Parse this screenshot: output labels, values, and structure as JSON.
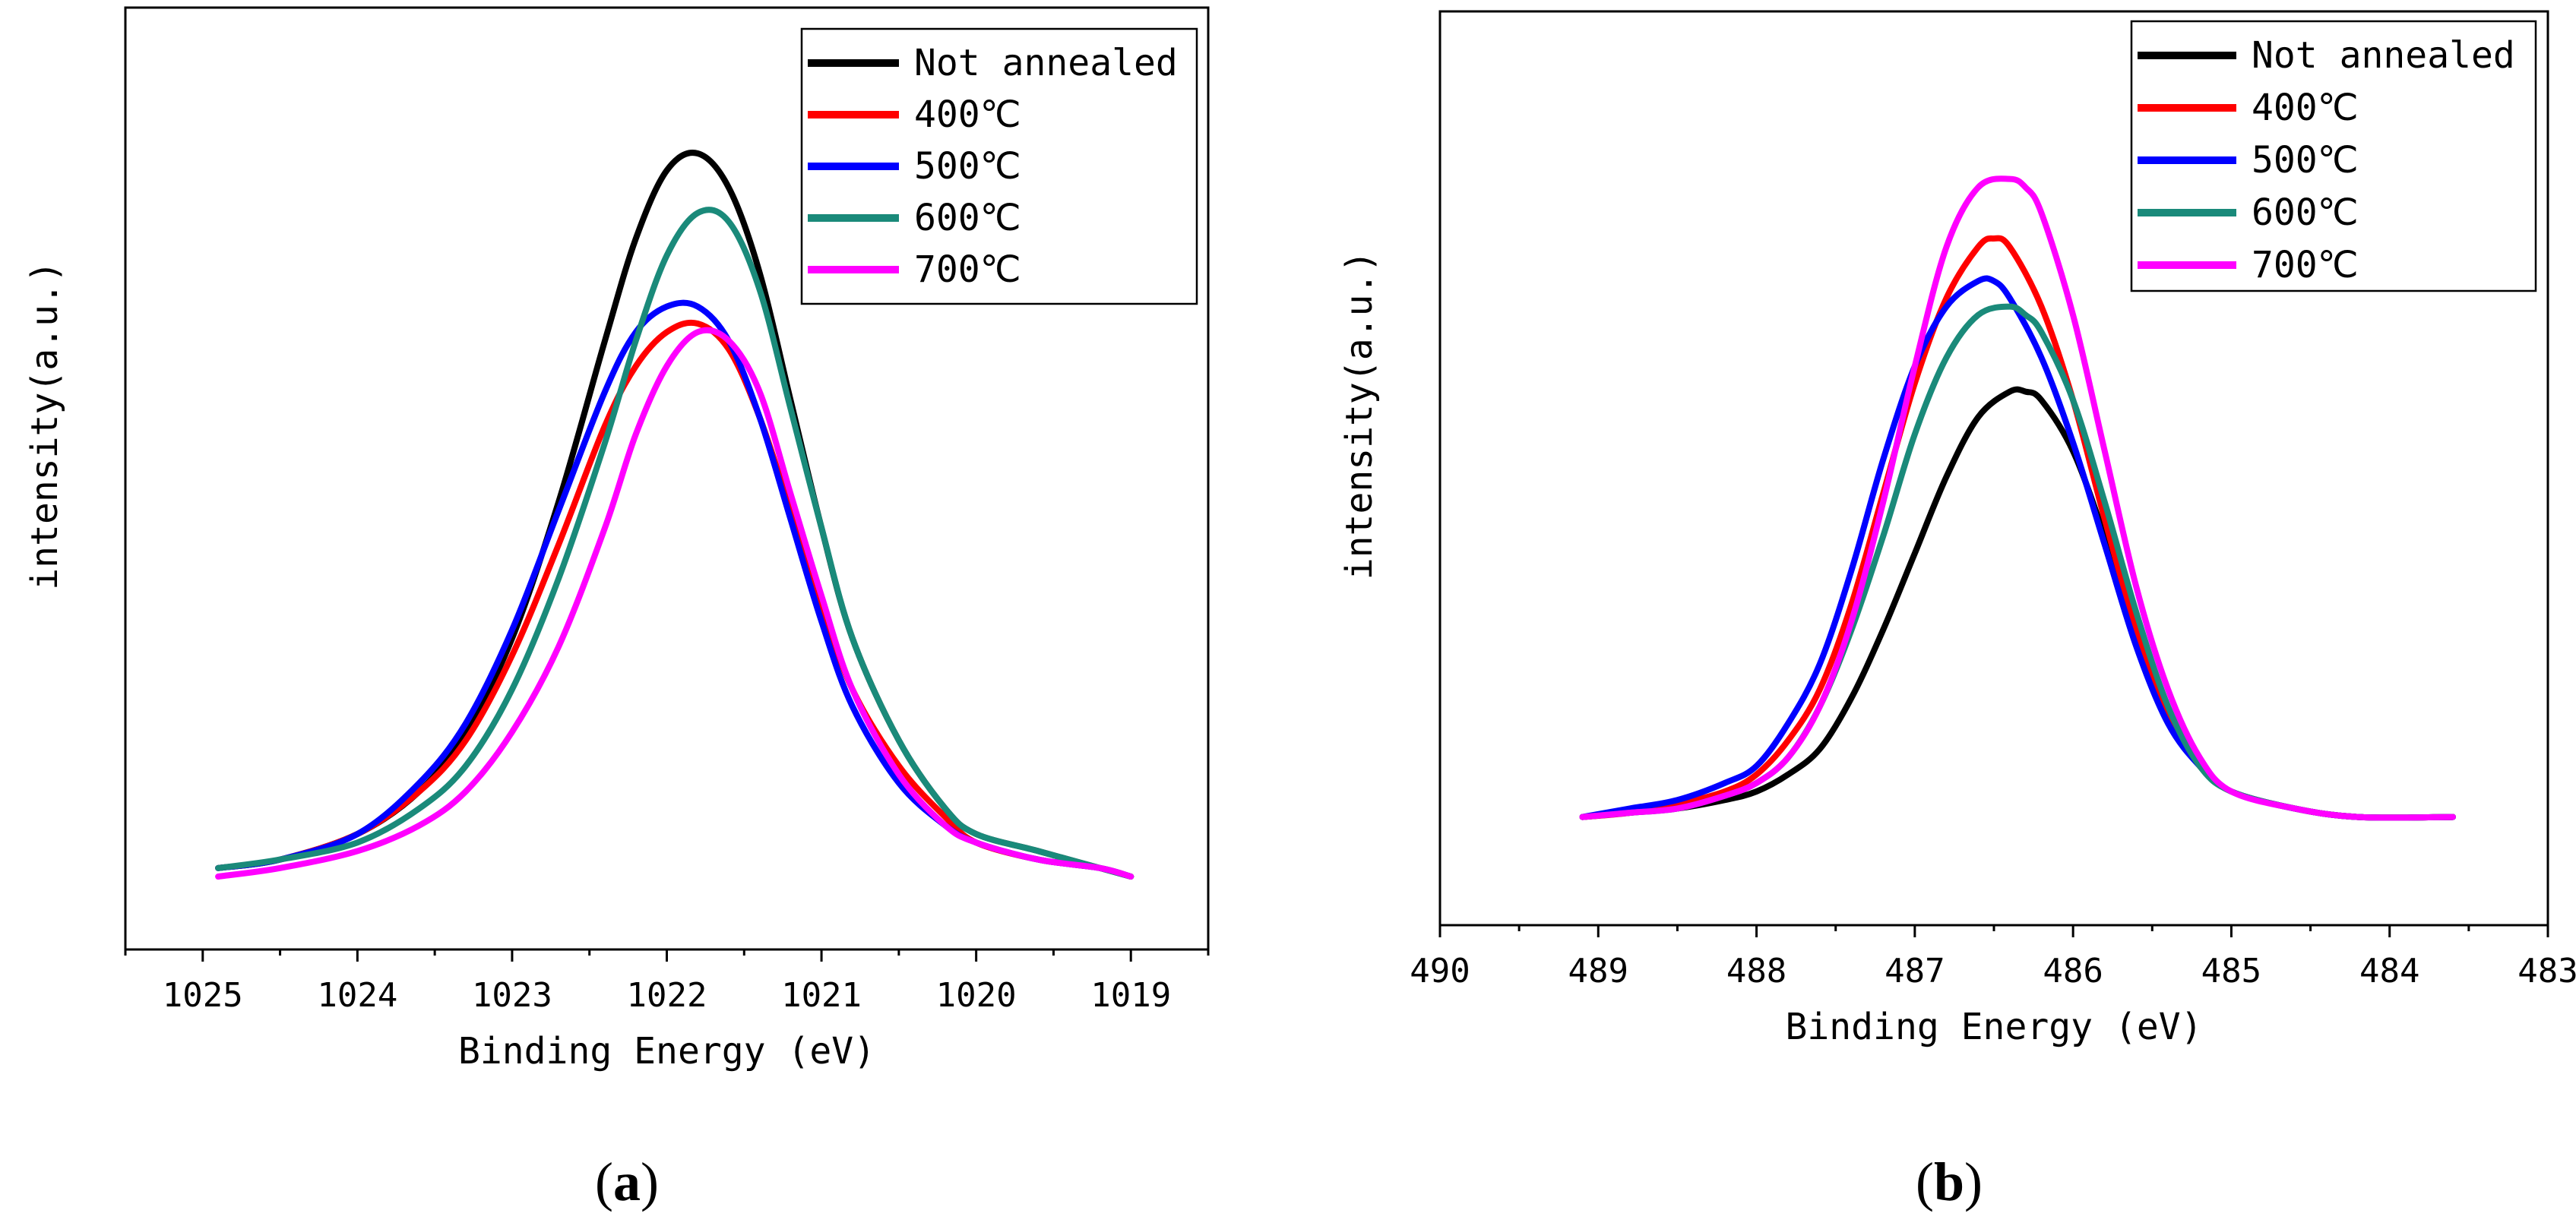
{
  "chart_data": [
    {
      "type": "line",
      "panel_label": "a",
      "title": "",
      "xlabel": "Binding Energy (eV)",
      "ylabel": "intensity(a.u.)",
      "xlim": [
        1025.5,
        1018.5
      ],
      "ylim": [
        0,
        1
      ],
      "x_reversed": true,
      "x_ticks": [
        1025,
        1024,
        1023,
        1022,
        1021,
        1020,
        1019
      ],
      "grid": false,
      "legend_position": "top-right",
      "series": [
        {
          "name": "Not annealed",
          "color": "#000000",
          "x": [
            1024.9,
            1024.5,
            1024.0,
            1023.6,
            1023.3,
            1023.0,
            1022.7,
            1022.4,
            1022.2,
            1022.0,
            1021.8,
            1021.6,
            1021.4,
            1021.2,
            1021.0,
            1020.8,
            1020.5,
            1020.2,
            1020.0,
            1019.6,
            1019.2,
            1019.0
          ],
          "y": [
            0.06,
            0.07,
            0.1,
            0.15,
            0.22,
            0.33,
            0.49,
            0.68,
            0.8,
            0.88,
            0.9,
            0.86,
            0.76,
            0.61,
            0.46,
            0.33,
            0.21,
            0.13,
            0.1,
            0.08,
            0.06,
            0.05
          ]
        },
        {
          "name": "400℃",
          "color": "#ff0000",
          "x": [
            1024.9,
            1024.5,
            1024.0,
            1023.6,
            1023.3,
            1023.0,
            1022.7,
            1022.4,
            1022.2,
            1022.0,
            1021.8,
            1021.6,
            1021.4,
            1021.2,
            1021.0,
            1020.8,
            1020.5,
            1020.2,
            1020.0,
            1019.6,
            1019.2,
            1019.0
          ],
          "y": [
            0.06,
            0.07,
            0.1,
            0.15,
            0.21,
            0.31,
            0.44,
            0.58,
            0.65,
            0.69,
            0.7,
            0.67,
            0.59,
            0.48,
            0.37,
            0.27,
            0.18,
            0.12,
            0.09,
            0.07,
            0.06,
            0.05
          ]
        },
        {
          "name": "500℃",
          "color": "#0000ff",
          "x": [
            1024.9,
            1024.5,
            1024.0,
            1023.6,
            1023.3,
            1023.0,
            1022.7,
            1022.4,
            1022.2,
            1022.0,
            1021.8,
            1021.6,
            1021.4,
            1021.2,
            1021.0,
            1020.8,
            1020.5,
            1020.2,
            1020.0,
            1019.6,
            1019.2,
            1019.0
          ],
          "y": [
            0.06,
            0.07,
            0.1,
            0.16,
            0.23,
            0.34,
            0.48,
            0.62,
            0.69,
            0.72,
            0.72,
            0.68,
            0.59,
            0.47,
            0.35,
            0.25,
            0.16,
            0.11,
            0.09,
            0.07,
            0.06,
            0.05
          ]
        },
        {
          "name": "600℃",
          "color": "#1a8a7a",
          "x": [
            1024.9,
            1024.5,
            1024.0,
            1023.6,
            1023.3,
            1023.0,
            1022.7,
            1022.4,
            1022.2,
            1022.0,
            1021.8,
            1021.6,
            1021.4,
            1021.2,
            1021.0,
            1020.8,
            1020.5,
            1020.2,
            1020.0,
            1019.6,
            1019.2,
            1019.0
          ],
          "y": [
            0.06,
            0.07,
            0.09,
            0.13,
            0.18,
            0.27,
            0.4,
            0.56,
            0.68,
            0.78,
            0.83,
            0.82,
            0.74,
            0.6,
            0.46,
            0.33,
            0.21,
            0.13,
            0.1,
            0.08,
            0.06,
            0.05
          ]
        },
        {
          "name": "700℃",
          "color": "#ff00ff",
          "x": [
            1024.9,
            1024.5,
            1024.0,
            1023.6,
            1023.3,
            1023.0,
            1022.7,
            1022.4,
            1022.2,
            1022.0,
            1021.8,
            1021.6,
            1021.4,
            1021.2,
            1021.0,
            1020.8,
            1020.5,
            1020.2,
            1020.0,
            1019.6,
            1019.2,
            1019.0
          ],
          "y": [
            0.05,
            0.06,
            0.08,
            0.11,
            0.15,
            0.22,
            0.32,
            0.46,
            0.57,
            0.65,
            0.69,
            0.68,
            0.62,
            0.5,
            0.38,
            0.27,
            0.17,
            0.11,
            0.09,
            0.07,
            0.06,
            0.05
          ]
        }
      ]
    },
    {
      "type": "line",
      "panel_label": "b",
      "title": "",
      "xlabel": "Binding Energy (eV)",
      "ylabel": "intensity(a.u.)",
      "xlim": [
        490,
        483
      ],
      "ylim": [
        0,
        1
      ],
      "x_reversed": true,
      "x_ticks": [
        490,
        489,
        488,
        487,
        486,
        485,
        484,
        483
      ],
      "grid": false,
      "legend_position": "top-right",
      "series": [
        {
          "name": "Not annealed",
          "color": "#000000",
          "x": [
            489.1,
            488.8,
            488.5,
            488.2,
            488.0,
            487.8,
            487.6,
            487.4,
            487.2,
            487.0,
            486.8,
            486.6,
            486.4,
            486.3,
            486.2,
            486.0,
            485.8,
            485.6,
            485.4,
            485.2,
            485.0,
            484.6,
            484.2,
            483.6
          ],
          "y": [
            0.12,
            0.125,
            0.13,
            0.14,
            0.15,
            0.17,
            0.2,
            0.26,
            0.34,
            0.43,
            0.52,
            0.59,
            0.62,
            0.62,
            0.61,
            0.55,
            0.45,
            0.34,
            0.24,
            0.18,
            0.15,
            0.13,
            0.12,
            0.12
          ]
        },
        {
          "name": "400℃",
          "color": "#ff0000",
          "x": [
            489.1,
            488.8,
            488.5,
            488.2,
            488.0,
            487.8,
            487.6,
            487.4,
            487.2,
            487.0,
            486.8,
            486.6,
            486.5,
            486.4,
            486.2,
            486.0,
            485.8,
            485.6,
            485.4,
            485.2,
            485.0,
            484.6,
            484.2,
            483.6
          ],
          "y": [
            0.12,
            0.125,
            0.135,
            0.15,
            0.17,
            0.21,
            0.27,
            0.37,
            0.5,
            0.63,
            0.73,
            0.79,
            0.8,
            0.79,
            0.72,
            0.61,
            0.47,
            0.34,
            0.24,
            0.18,
            0.15,
            0.13,
            0.12,
            0.12
          ]
        },
        {
          "name": "500℃",
          "color": "#0000ff",
          "x": [
            489.1,
            488.8,
            488.5,
            488.2,
            488.0,
            487.8,
            487.6,
            487.4,
            487.2,
            487.0,
            486.8,
            486.6,
            486.5,
            486.4,
            486.2,
            486.0,
            485.8,
            485.6,
            485.4,
            485.2,
            485.0,
            484.6,
            484.2,
            483.6
          ],
          "y": [
            0.12,
            0.13,
            0.14,
            0.16,
            0.18,
            0.23,
            0.3,
            0.41,
            0.54,
            0.65,
            0.72,
            0.75,
            0.75,
            0.73,
            0.66,
            0.56,
            0.44,
            0.32,
            0.23,
            0.18,
            0.15,
            0.13,
            0.12,
            0.12
          ]
        },
        {
          "name": "600℃",
          "color": "#1a8a7a",
          "x": [
            489.1,
            488.8,
            488.5,
            488.2,
            488.0,
            487.8,
            487.6,
            487.4,
            487.2,
            487.0,
            486.8,
            486.6,
            486.4,
            486.3,
            486.2,
            486.0,
            485.8,
            485.6,
            485.4,
            485.2,
            485.0,
            484.6,
            484.2,
            483.6
          ],
          "y": [
            0.12,
            0.125,
            0.13,
            0.145,
            0.16,
            0.19,
            0.25,
            0.34,
            0.45,
            0.57,
            0.66,
            0.71,
            0.72,
            0.71,
            0.69,
            0.61,
            0.49,
            0.36,
            0.25,
            0.18,
            0.15,
            0.13,
            0.12,
            0.12
          ]
        },
        {
          "name": "700℃",
          "color": "#ff00ff",
          "x": [
            489.1,
            488.8,
            488.5,
            488.2,
            488.0,
            487.8,
            487.6,
            487.4,
            487.2,
            487.0,
            486.8,
            486.6,
            486.4,
            486.3,
            486.2,
            486.0,
            485.8,
            485.6,
            485.4,
            485.2,
            485.0,
            484.6,
            484.2,
            483.6
          ],
          "y": [
            0.12,
            0.125,
            0.13,
            0.145,
            0.16,
            0.19,
            0.25,
            0.35,
            0.49,
            0.65,
            0.79,
            0.86,
            0.87,
            0.86,
            0.83,
            0.71,
            0.55,
            0.39,
            0.27,
            0.19,
            0.15,
            0.13,
            0.12,
            0.12
          ]
        }
      ]
    }
  ]
}
